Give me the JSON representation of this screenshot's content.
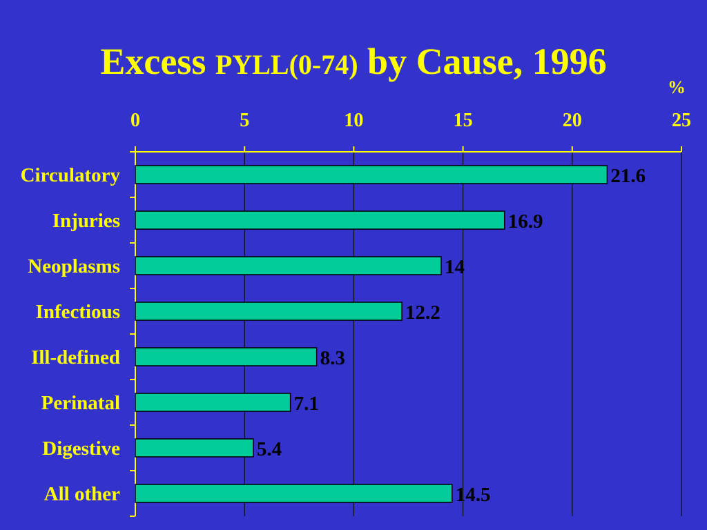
{
  "title": {
    "part1": "Excess ",
    "part2": "PYLL(0-74)",
    "part3": " by Cause, 1996"
  },
  "colors": {
    "background": "#3333cc",
    "title": "#ffff00",
    "bar": "#00cc99",
    "label": "#ffff00",
    "value_text": "#000000"
  },
  "chart_data": {
    "type": "bar",
    "orientation": "horizontal",
    "categories": [
      "Circulatory",
      "Injuries",
      "Neoplasms",
      "Infectious",
      "Ill-defined",
      "Perinatal",
      "Digestive",
      "All other"
    ],
    "values": [
      21.6,
      16.9,
      14,
      12.2,
      8.3,
      7.1,
      5.4,
      14.5
    ],
    "value_labels": [
      "21.6",
      "16.9",
      "14",
      "12.2",
      "8.3",
      "7.1",
      "5.4",
      "14.5"
    ],
    "xlim": [
      0,
      25
    ],
    "xticks": [
      "0",
      "5",
      "10",
      "15",
      "20",
      "25"
    ],
    "unit_label": "%",
    "grid": true
  }
}
